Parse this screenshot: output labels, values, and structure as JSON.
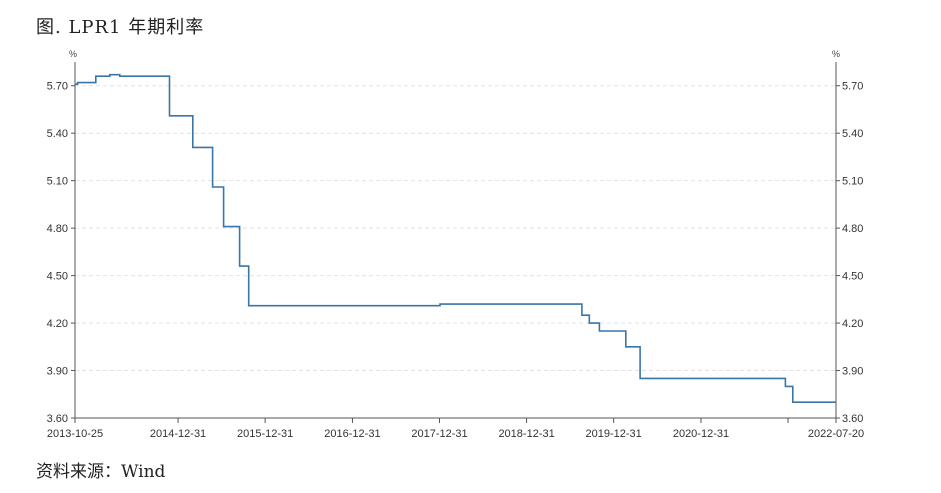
{
  "title": "图. LPR1 年期利率",
  "source": "资料来源：Wind",
  "chart_data": {
    "type": "line",
    "series": [
      {
        "color": "#3a75a8",
        "x": [
          "2013-10-25",
          "2013-11-05",
          "2014-01-06",
          "2014-01-20",
          "2014-02-20",
          "2014-03-20",
          "2014-05-01",
          "2014-11-20",
          "2014-11-25",
          "2015-02-28",
          "2015-03-03",
          "2015-05-10",
          "2015-05-25",
          "2015-06-27",
          "2015-07-10",
          "2015-08-25",
          "2015-09-15",
          "2015-10-23",
          "2017-12-31",
          "2018-01-02",
          "2019-08-15",
          "2019-08-20",
          "2019-09-01",
          "2019-09-20",
          "2019-10-01",
          "2019-11-01",
          "2019-11-20",
          "2019-12-10",
          "2020-02-20",
          "2020-03-10",
          "2020-04-20",
          "2020-06-01",
          "2021-11-15",
          "2021-12-01",
          "2021-12-20",
          "2022-01-20",
          "2022-07-20"
        ],
        "y": [
          5.71,
          5.72,
          5.72,
          5.76,
          5.76,
          5.77,
          5.76,
          5.76,
          5.51,
          5.51,
          5.31,
          5.31,
          5.06,
          5.06,
          4.81,
          4.81,
          4.56,
          4.31,
          4.31,
          4.32,
          4.32,
          4.25,
          4.25,
          4.2,
          4.2,
          4.15,
          4.15,
          4.15,
          4.05,
          4.05,
          3.85,
          3.85,
          3.85,
          3.85,
          3.8,
          3.7,
          3.7
        ]
      }
    ],
    "x_ticks": [
      "2013-10-25",
      "2014-12-31",
      "2015-12-31",
      "2016-12-31",
      "2017-12-31",
      "2018-12-31",
      "2019-12-31",
      "2020-12-31",
      "2022-07-20"
    ],
    "y_ticks": [
      "3.60",
      "3.90",
      "4.20",
      "4.50",
      "4.80",
      "5.10",
      "5.40",
      "5.70"
    ],
    "ylim": [
      3.6,
      5.85
    ],
    "xlim": [
      "2013-10-25",
      "2022-07-20"
    ],
    "y_unit_left": "%",
    "y_unit_right": "%",
    "grid": true,
    "dual_y_axis": true
  }
}
